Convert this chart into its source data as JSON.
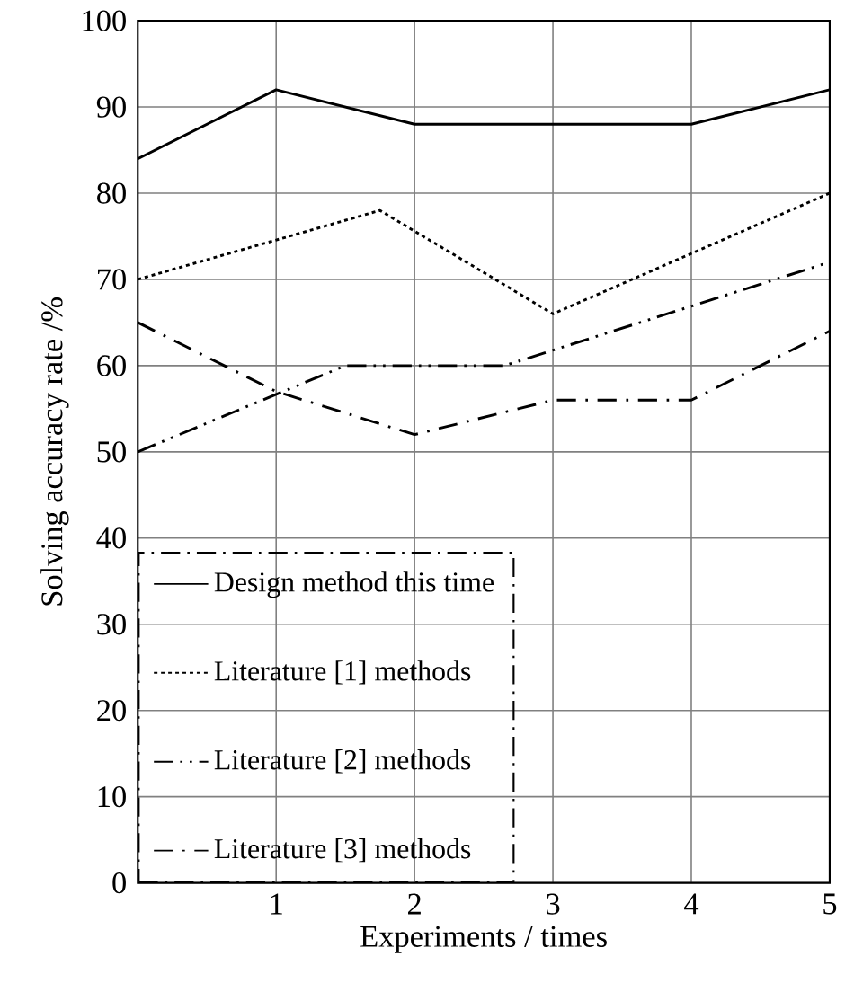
{
  "chart_data": {
    "type": "line",
    "xlabel": "Experiments / times",
    "ylabel": "Solving accuracy rate /%",
    "xlim": [
      0,
      5
    ],
    "xticks": [
      1,
      2,
      3,
      4,
      5
    ],
    "ylim": [
      0,
      100
    ],
    "yticks": [
      0,
      10,
      20,
      30,
      40,
      50,
      60,
      70,
      80,
      90,
      100
    ],
    "grid": true,
    "legend": "bottom left",
    "marker": "none",
    "series": [
      {
        "name": "Design method this time",
        "color": "#000000",
        "line_style": "solid",
        "x": [
          0,
          1,
          2,
          3,
          4,
          5
        ],
        "values": [
          84,
          92,
          88,
          88,
          88,
          92
        ]
      },
      {
        "name": "Literature [1] methods",
        "color": "#000000",
        "line_style": "dotted",
        "x": [
          0,
          1.75,
          3,
          5
        ],
        "values": [
          70,
          78,
          66,
          80
        ]
      },
      {
        "name": "Literature [2] methods",
        "color": "#000000",
        "line_style": "dashdotdot",
        "x": [
          0,
          1.5,
          2.65,
          5
        ],
        "values": [
          50,
          60,
          60,
          72
        ]
      },
      {
        "name": "Literature [3] methods",
        "color": "#000000",
        "line_style": "dashdot",
        "x": [
          0,
          1,
          2,
          3,
          4,
          5
        ],
        "values": [
          65,
          57,
          52,
          56,
          56,
          64
        ]
      }
    ]
  }
}
